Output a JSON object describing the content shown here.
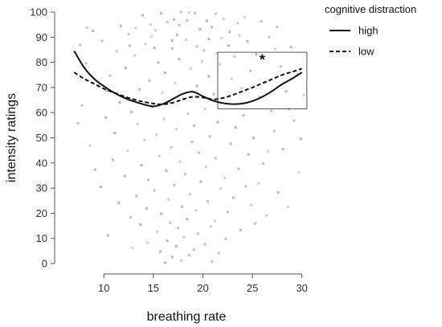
{
  "chart_data": {
    "type": "scatter",
    "xlabel": "breathing rate",
    "ylabel": "intensity ratings",
    "xlim": [
      6,
      31
    ],
    "ylim": [
      0,
      100
    ],
    "x_ticks": [
      10,
      15,
      20,
      25,
      30
    ],
    "y_ticks": [
      0,
      10,
      20,
      30,
      40,
      50,
      60,
      70,
      80,
      90,
      100
    ],
    "grid": false,
    "legend": {
      "title": "cognitive distraction",
      "placement": "top-right outside",
      "entries": [
        {
          "label": "high",
          "style": "solid"
        },
        {
          "label": "low",
          "style": "dashed"
        }
      ]
    },
    "series": [
      {
        "name": "high",
        "style": "solid",
        "color": "#111111",
        "x": [
          7,
          8,
          9,
          10,
          11,
          12,
          13,
          14,
          15,
          16,
          17,
          18,
          19,
          20,
          21,
          22,
          23,
          24,
          25,
          26,
          27,
          28,
          29,
          30
        ],
        "y": [
          84.5,
          78,
          73.5,
          70.5,
          68,
          66,
          64.5,
          63.3,
          62.5,
          63.5,
          65.5,
          67.5,
          68.3,
          66.5,
          64.8,
          63.8,
          63.4,
          63.6,
          64.6,
          66.3,
          68.6,
          71.3,
          73.5,
          76
        ]
      },
      {
        "name": "low",
        "style": "dashed",
        "color": "#111111",
        "x": [
          7,
          8,
          9,
          10,
          11,
          12,
          13,
          14,
          15,
          16,
          17,
          18,
          19,
          20,
          21,
          22,
          23,
          24,
          25,
          26,
          27,
          28,
          29,
          30
        ],
        "y": [
          76,
          73.5,
          71.5,
          69.5,
          68,
          66.5,
          65.3,
          64.3,
          63.6,
          63.3,
          64,
          65.3,
          66.3,
          66,
          65.3,
          65.8,
          67,
          68.5,
          70,
          71.7,
          73.3,
          75,
          76.2,
          77.5
        ]
      }
    ],
    "scatter_points": [
      [
        15.8,
        99.5
      ],
      [
        18.6,
        99.8
      ],
      [
        17.1,
        97
      ],
      [
        20.4,
        96.5
      ],
      [
        22.1,
        97.3
      ],
      [
        19.2,
        99.6
      ],
      [
        13.9,
        98.7
      ],
      [
        23.5,
        95.5
      ],
      [
        16.4,
        96
      ],
      [
        11.7,
        94.5
      ],
      [
        24.2,
        98
      ],
      [
        17.8,
        100
      ],
      [
        20.9,
        94
      ],
      [
        21.3,
        99.4
      ],
      [
        25.9,
        96.3
      ],
      [
        8.9,
        92.5
      ],
      [
        14.7,
        95
      ],
      [
        27.5,
        94
      ],
      [
        19.7,
        93.1
      ],
      [
        15.2,
        92.7
      ],
      [
        12.5,
        91.2
      ],
      [
        17.4,
        91
      ],
      [
        21.9,
        89.7
      ],
      [
        26.7,
        90
      ],
      [
        24.5,
        88.4
      ],
      [
        18.3,
        89
      ],
      [
        9.8,
        88.5
      ],
      [
        22.6,
        86.7
      ],
      [
        14.2,
        87.3
      ],
      [
        16.9,
        85.5
      ],
      [
        28.9,
        86.1
      ],
      [
        11.3,
        84.4
      ],
      [
        20.1,
        84.7
      ],
      [
        25.4,
        83.2
      ],
      [
        13.1,
        82.7
      ],
      [
        23.2,
        82.4
      ],
      [
        17.6,
        81.3
      ],
      [
        19.9,
        80.4
      ],
      [
        8.2,
        79.6
      ],
      [
        15.5,
        79.9
      ],
      [
        21.7,
        79.2
      ],
      [
        27.9,
        78.4
      ],
      [
        12.2,
        77.8
      ],
      [
        18.8,
        77.5
      ],
      [
        24.8,
        76.6
      ],
      [
        16.2,
        75.9
      ],
      [
        29.5,
        75.2
      ],
      [
        10.6,
        74.7
      ],
      [
        20.6,
        74.4
      ],
      [
        22.9,
        73.5
      ],
      [
        14.6,
        72.7
      ],
      [
        26.3,
        72.1
      ],
      [
        17.2,
        71.8
      ],
      [
        9.4,
        70.9
      ],
      [
        19.4,
        70.6
      ],
      [
        23.9,
        69.7
      ],
      [
        13.6,
        69.2
      ],
      [
        28.4,
        68.5
      ],
      [
        15.9,
        67.9
      ],
      [
        21.1,
        67.3
      ],
      [
        11.9,
        66.6
      ],
      [
        25.7,
        66.2
      ],
      [
        18.1,
        65.4
      ],
      [
        16.6,
        64.3
      ],
      [
        22.4,
        63.6
      ],
      [
        7.8,
        62.9
      ],
      [
        14.9,
        62.2
      ],
      [
        20.2,
        61.5
      ],
      [
        26.9,
        60.7
      ],
      [
        12.8,
        60.3
      ],
      [
        18.5,
        59.6
      ],
      [
        24.1,
        58.9
      ],
      [
        10.2,
        58.1
      ],
      [
        16.1,
        57.4
      ],
      [
        29.2,
        56.8
      ],
      [
        21.5,
        56.2
      ],
      [
        13.4,
        55.5
      ],
      [
        19.1,
        54.8
      ],
      [
        23.3,
        54.1
      ],
      [
        17.3,
        53.4
      ],
      [
        27.2,
        52.7
      ],
      [
        11.1,
        51.9
      ],
      [
        15.3,
        51.3
      ],
      [
        20.7,
        50.6
      ],
      [
        25.1,
        49.9
      ],
      [
        14.1,
        49.2
      ],
      [
        18.9,
        48.4
      ],
      [
        22.8,
        47.6
      ],
      [
        8.6,
        46.9
      ],
      [
        16.8,
        46.2
      ],
      [
        28.1,
        45.5
      ],
      [
        12.4,
        44.8
      ],
      [
        19.6,
        44.1
      ],
      [
        24.6,
        43.4
      ],
      [
        15.6,
        42.7
      ],
      [
        21.3,
        41.9
      ],
      [
        10.9,
        41.2
      ],
      [
        17.7,
        40.5
      ],
      [
        26.1,
        39.8
      ],
      [
        13.8,
        39.1
      ],
      [
        20.3,
        38.4
      ],
      [
        23.6,
        37.6
      ],
      [
        16.3,
        36.9
      ],
      [
        29.7,
        36.2
      ],
      [
        18.2,
        35.5
      ],
      [
        12.1,
        34.8
      ],
      [
        22.2,
        34.1
      ],
      [
        14.5,
        33.3
      ],
      [
        19.8,
        32.6
      ],
      [
        25.6,
        31.9
      ],
      [
        17.1,
        31.2
      ],
      [
        9.7,
        30.5
      ],
      [
        21.8,
        29.8
      ],
      [
        15.1,
        29.1
      ],
      [
        27.6,
        28.3
      ],
      [
        18.7,
        27.6
      ],
      [
        13.3,
        26.9
      ],
      [
        23.1,
        26.2
      ],
      [
        16.5,
        25.5
      ],
      [
        20.5,
        24.8
      ],
      [
        11.5,
        24.1
      ],
      [
        24.9,
        23.3
      ],
      [
        17.9,
        22.6
      ],
      [
        14.3,
        21.9
      ],
      [
        19.3,
        21.2
      ],
      [
        22.5,
        20.5
      ],
      [
        15.8,
        19.8
      ],
      [
        26.4,
        19.1
      ],
      [
        12.7,
        18.3
      ],
      [
        18.4,
        17.6
      ],
      [
        21.2,
        16.9
      ],
      [
        16.7,
        16.2
      ],
      [
        13.7,
        15.5
      ],
      [
        20.8,
        14.8
      ],
      [
        17.5,
        14.1
      ],
      [
        23.8,
        13.3
      ],
      [
        15.4,
        12.6
      ],
      [
        19.5,
        11.9
      ],
      [
        10.4,
        11.2
      ],
      [
        18.1,
        10.5
      ],
      [
        22.3,
        9.8
      ],
      [
        16.4,
        9.1
      ],
      [
        14.4,
        8.3
      ],
      [
        20.2,
        7.6
      ],
      [
        17.3,
        6.9
      ],
      [
        12.9,
        6.2
      ],
      [
        19.1,
        5.5
      ],
      [
        15.7,
        4.8
      ],
      [
        21.6,
        4.1
      ],
      [
        18.6,
        3.3
      ],
      [
        16.9,
        2.6
      ],
      [
        17.8,
        1.2
      ],
      [
        20.9,
        0.8
      ],
      [
        16.2,
        0.3
      ],
      [
        8.3,
        93.8
      ],
      [
        10.3,
        68.7
      ],
      [
        11.6,
        64.1
      ],
      [
        27.3,
        85.3
      ],
      [
        28.7,
        61.4
      ],
      [
        29.9,
        49.6
      ],
      [
        30.2,
        66.9
      ],
      [
        7.4,
        55.8
      ],
      [
        9.1,
        37.3
      ],
      [
        26.6,
        44.6
      ],
      [
        24.3,
        30.7
      ],
      [
        25.3,
        15.9
      ],
      [
        28.6,
        22.4
      ],
      [
        7.6,
        86.9
      ],
      [
        22.7,
        92.1
      ],
      [
        13.2,
        93.6
      ],
      [
        19.4,
        86.3
      ],
      [
        16.9,
        88.7
      ],
      [
        21.4,
        83.6
      ],
      [
        18.4,
        96.7
      ],
      [
        15.1,
        85.8
      ],
      [
        23.7,
        90.7
      ],
      [
        17.6,
        94.8
      ],
      [
        20.6,
        89.3
      ],
      [
        14.8,
        90.3
      ],
      [
        12.6,
        86.6
      ]
    ],
    "annotations": [
      {
        "text": "*",
        "at": [
          26,
          79
        ],
        "note": "box spans breathing rate 21.5–30.5, intensity 61–84"
      }
    ],
    "highlight_box": {
      "x": [
        21.5,
        30.5
      ],
      "y": [
        61.5,
        84
      ]
    }
  }
}
